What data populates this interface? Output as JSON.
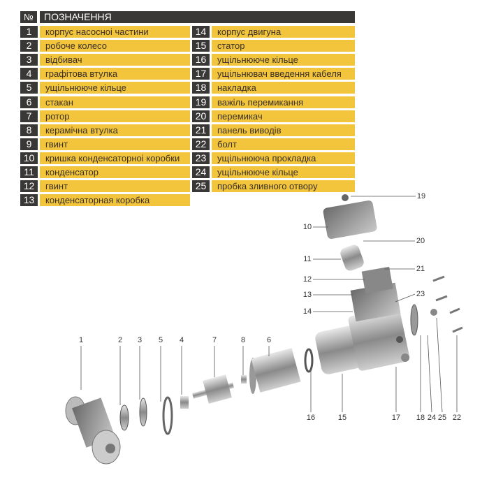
{
  "table": {
    "header_no": "№",
    "header_title": "ПОЗНАЧЕННЯ",
    "left": [
      {
        "n": "1",
        "t": "корпус насосноі частини"
      },
      {
        "n": "2",
        "t": "робоче колесо"
      },
      {
        "n": "3",
        "t": "відбивач"
      },
      {
        "n": "4",
        "t": "графітова втулка"
      },
      {
        "n": "5",
        "t": "ущільнююче кільце"
      },
      {
        "n": "6",
        "t": "стакан"
      },
      {
        "n": "7",
        "t": "ротор"
      },
      {
        "n": "8",
        "t": "керамічна втулка"
      },
      {
        "n": "9",
        "t": "гвинт"
      },
      {
        "n": "10",
        "t": "кришка конденсаторноі коробки"
      },
      {
        "n": "11",
        "t": "конденсатор"
      },
      {
        "n": "12",
        "t": "гвинт"
      },
      {
        "n": "13",
        "t": "конденсаторная коробка"
      }
    ],
    "right": [
      {
        "n": "14",
        "t": "корпус двигуна"
      },
      {
        "n": "15",
        "t": "статор"
      },
      {
        "n": "16",
        "t": "ущільнююче кільце"
      },
      {
        "n": "17",
        "t": "ущільнювач введення кабеля"
      },
      {
        "n": "18",
        "t": "накладка"
      },
      {
        "n": "19",
        "t": "важіль перемикання"
      },
      {
        "n": "20",
        "t": "перемикач"
      },
      {
        "n": "21",
        "t": "панель виводів"
      },
      {
        "n": "22",
        "t": "болт"
      },
      {
        "n": "23",
        "t": "ущільнююча прокладка"
      },
      {
        "n": "24",
        "t": "ущільнююче кільце"
      },
      {
        "n": "25",
        "t": "пробка зливного отвору"
      }
    ]
  },
  "diagram": {
    "callouts": [
      "1",
      "2",
      "3",
      "5",
      "4",
      "7",
      "8",
      "6",
      "10",
      "11",
      "12",
      "13",
      "14",
      "19",
      "20",
      "21",
      "23",
      "16",
      "15",
      "17",
      "18",
      "24",
      "25",
      "22"
    ]
  },
  "colors": {
    "accent": "#f2c53d",
    "dark": "#3a3836"
  }
}
